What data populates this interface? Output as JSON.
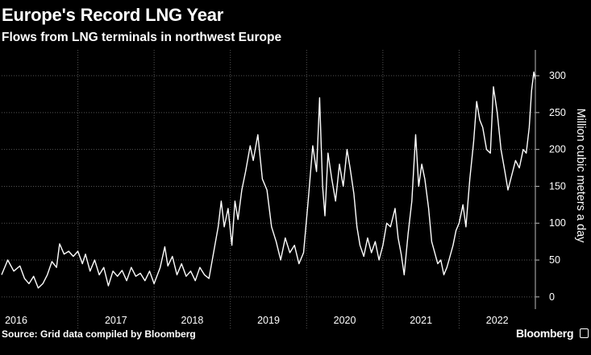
{
  "header": {
    "title": "Europe's Record LNG Year",
    "subtitle": "Flows from LNG terminals in northwest Europe"
  },
  "footer": {
    "source": "Source: Grid data compiled by Bloomberg",
    "brand": "Bloomberg",
    "brand_icon": "bloomberg-square-icon"
  },
  "colors": {
    "background": "#000000",
    "line": "#ffffff",
    "grid": "#555555"
  },
  "chart_data": {
    "type": "line",
    "title": "Europe's Record LNG Year",
    "subtitle": "Flows from LNG terminals in northwest Europe",
    "xlabel": "",
    "ylabel": "Million cubic meters a day",
    "ylim": [
      -10,
      335
    ],
    "xlim": [
      2016.0,
      2022.95
    ],
    "yticks": [
      0,
      50,
      100,
      150,
      200,
      250,
      300
    ],
    "xticks": [
      "2016",
      "2017",
      "2018",
      "2019",
      "2020",
      "2021",
      "2022"
    ],
    "grid": true,
    "axis_position": "right",
    "series": [
      {
        "values": [
          [
            2016.0,
            30
          ],
          [
            2016.08,
            50
          ],
          [
            2016.16,
            35
          ],
          [
            2016.24,
            42
          ],
          [
            2016.3,
            25
          ],
          [
            2016.36,
            18
          ],
          [
            2016.42,
            28
          ],
          [
            2016.48,
            12
          ],
          [
            2016.54,
            18
          ],
          [
            2016.6,
            30
          ],
          [
            2016.66,
            48
          ],
          [
            2016.72,
            40
          ],
          [
            2016.76,
            72
          ],
          [
            2016.82,
            58
          ],
          [
            2016.88,
            62
          ],
          [
            2016.94,
            55
          ],
          [
            2017.0,
            62
          ],
          [
            2017.06,
            45
          ],
          [
            2017.1,
            58
          ],
          [
            2017.16,
            35
          ],
          [
            2017.22,
            50
          ],
          [
            2017.28,
            30
          ],
          [
            2017.34,
            40
          ],
          [
            2017.4,
            15
          ],
          [
            2017.46,
            35
          ],
          [
            2017.52,
            28
          ],
          [
            2017.58,
            36
          ],
          [
            2017.64,
            22
          ],
          [
            2017.7,
            40
          ],
          [
            2017.76,
            28
          ],
          [
            2017.82,
            32
          ],
          [
            2017.88,
            22
          ],
          [
            2017.94,
            35
          ],
          [
            2018.0,
            18
          ],
          [
            2018.08,
            40
          ],
          [
            2018.14,
            68
          ],
          [
            2018.18,
            42
          ],
          [
            2018.24,
            55
          ],
          [
            2018.3,
            30
          ],
          [
            2018.36,
            45
          ],
          [
            2018.42,
            28
          ],
          [
            2018.48,
            35
          ],
          [
            2018.54,
            22
          ],
          [
            2018.6,
            40
          ],
          [
            2018.66,
            30
          ],
          [
            2018.72,
            25
          ],
          [
            2018.78,
            60
          ],
          [
            2018.84,
            95
          ],
          [
            2018.88,
            130
          ],
          [
            2018.92,
            95
          ],
          [
            2018.97,
            120
          ],
          [
            2019.02,
            70
          ],
          [
            2019.06,
            130
          ],
          [
            2019.1,
            105
          ],
          [
            2019.15,
            145
          ],
          [
            2019.2,
            170
          ],
          [
            2019.26,
            205
          ],
          [
            2019.3,
            185
          ],
          [
            2019.36,
            220
          ],
          [
            2019.42,
            160
          ],
          [
            2019.48,
            145
          ],
          [
            2019.54,
            95
          ],
          [
            2019.6,
            75
          ],
          [
            2019.66,
            50
          ],
          [
            2019.72,
            80
          ],
          [
            2019.78,
            60
          ],
          [
            2019.84,
            70
          ],
          [
            2019.9,
            45
          ],
          [
            2019.96,
            60
          ],
          [
            2020.02,
            130
          ],
          [
            2020.08,
            205
          ],
          [
            2020.13,
            170
          ],
          [
            2020.17,
            270
          ],
          [
            2020.21,
            150
          ],
          [
            2020.24,
            110
          ],
          [
            2020.28,
            195
          ],
          [
            2020.33,
            160
          ],
          [
            2020.38,
            130
          ],
          [
            2020.43,
            180
          ],
          [
            2020.48,
            150
          ],
          [
            2020.53,
            200
          ],
          [
            2020.57,
            175
          ],
          [
            2020.62,
            140
          ],
          [
            2020.66,
            95
          ],
          [
            2020.7,
            70
          ],
          [
            2020.75,
            55
          ],
          [
            2020.8,
            80
          ],
          [
            2020.85,
            60
          ],
          [
            2020.9,
            75
          ],
          [
            2020.95,
            50
          ],
          [
            2021.0,
            70
          ],
          [
            2021.05,
            100
          ],
          [
            2021.1,
            95
          ],
          [
            2021.16,
            120
          ],
          [
            2021.2,
            80
          ],
          [
            2021.24,
            58
          ],
          [
            2021.28,
            30
          ],
          [
            2021.33,
            85
          ],
          [
            2021.38,
            130
          ],
          [
            2021.43,
            220
          ],
          [
            2021.47,
            150
          ],
          [
            2021.51,
            180
          ],
          [
            2021.55,
            160
          ],
          [
            2021.6,
            120
          ],
          [
            2021.64,
            75
          ],
          [
            2021.68,
            60
          ],
          [
            2021.72,
            45
          ],
          [
            2021.76,
            50
          ],
          [
            2021.8,
            30
          ],
          [
            2021.84,
            40
          ],
          [
            2021.88,
            55
          ],
          [
            2021.92,
            70
          ],
          [
            2021.96,
            90
          ],
          [
            2022.0,
            100
          ],
          [
            2022.05,
            125
          ],
          [
            2022.09,
            95
          ],
          [
            2022.14,
            160
          ],
          [
            2022.19,
            210
          ],
          [
            2022.23,
            265
          ],
          [
            2022.27,
            240
          ],
          [
            2022.31,
            230
          ],
          [
            2022.36,
            200
          ],
          [
            2022.41,
            195
          ],
          [
            2022.45,
            285
          ],
          [
            2022.5,
            250
          ],
          [
            2022.55,
            200
          ],
          [
            2022.6,
            170
          ],
          [
            2022.64,
            145
          ],
          [
            2022.69,
            165
          ],
          [
            2022.74,
            185
          ],
          [
            2022.79,
            175
          ],
          [
            2022.84,
            200
          ],
          [
            2022.88,
            195
          ],
          [
            2022.92,
            230
          ],
          [
            2022.95,
            280
          ],
          [
            2022.98,
            305
          ],
          [
            2023.0,
            295
          ]
        ]
      }
    ]
  }
}
